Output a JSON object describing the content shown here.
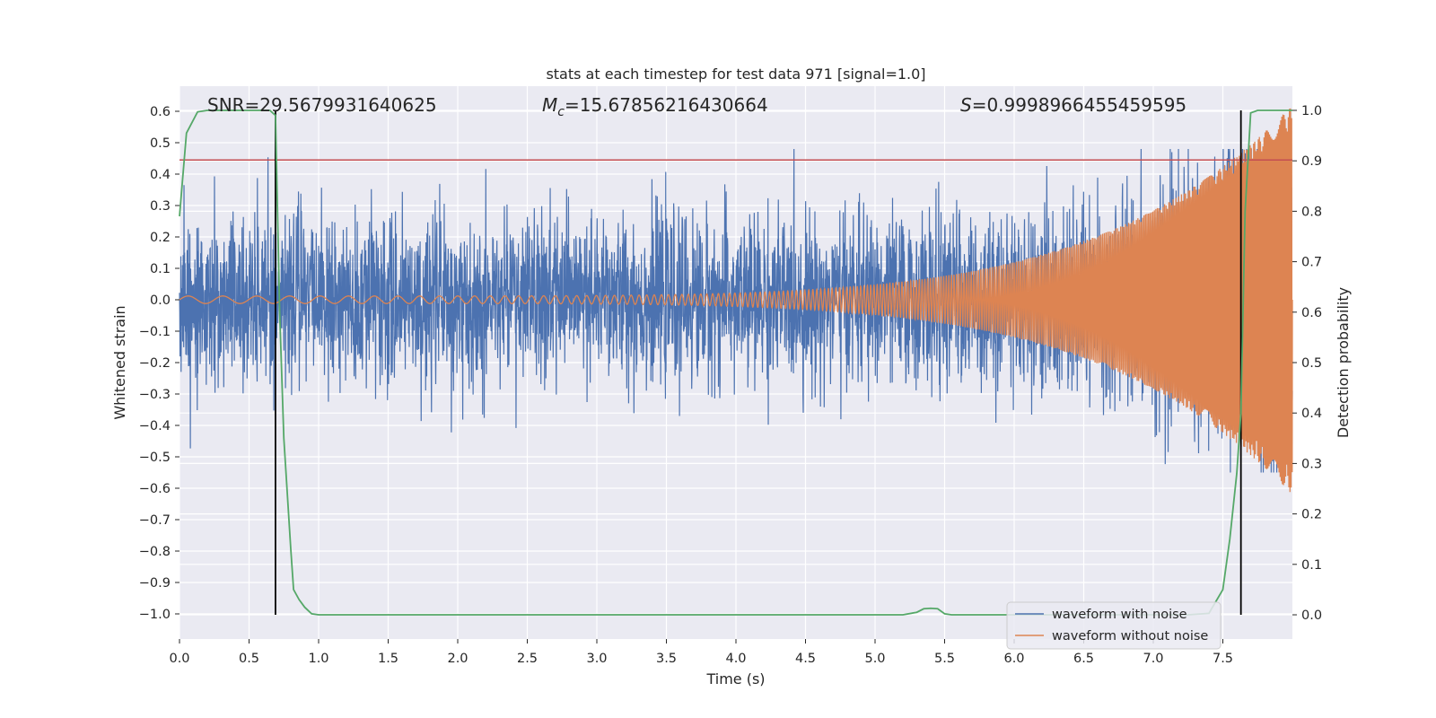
{
  "chart_data": {
    "type": "line",
    "title": "stats at each timestep for test data 971 [signal=1.0]",
    "xlabel": "Time (s)",
    "ylabel": "Whitened strain",
    "y2label": "Detection probability",
    "xlim": [
      0.0,
      8.0
    ],
    "ylim": [
      -1.08,
      0.68
    ],
    "y2lim": [
      -0.048,
      1.048
    ],
    "x_ticks": [
      "0.0",
      "0.5",
      "1.0",
      "1.5",
      "2.0",
      "2.5",
      "3.0",
      "3.5",
      "4.0",
      "4.5",
      "5.0",
      "5.5",
      "6.0",
      "6.5",
      "7.0",
      "7.5"
    ],
    "y_ticks": [
      "0.6",
      "0.5",
      "0.4",
      "0.3",
      "0.2",
      "0.1",
      "0.0",
      "−0.1",
      "−0.2",
      "−0.3",
      "−0.4",
      "−0.5",
      "−0.6",
      "−0.7",
      "−0.8",
      "−0.9",
      "−1.0"
    ],
    "y2_ticks": [
      "1.0",
      "0.9",
      "0.8",
      "0.7",
      "0.6",
      "0.5",
      "0.4",
      "0.3",
      "0.2",
      "0.1",
      "0.0"
    ],
    "grid": true,
    "legend_position": "lower-right",
    "annotations": {
      "snr": "SNR=29.5679931640625",
      "mc": "=15.67856216430664",
      "mc_symbol": "M",
      "mc_sub": "c",
      "s": "=0.9998966455459595",
      "s_symbol": "S"
    },
    "series": [
      {
        "name": "waveform with noise",
        "color": "#4c72b0",
        "description_amplitude": 0.13,
        "envelope_end": 0.45
      },
      {
        "name": "waveform without noise",
        "color": "#dd8452",
        "amp_start": 0.012,
        "amp_end": 0.62,
        "freq_start": 4.0,
        "freq_end": 40.0
      }
    ],
    "threshold_line": {
      "y": 0.445,
      "color": "#c44e52"
    },
    "vertical_lines": [
      {
        "x": 0.69,
        "color": "#000000"
      },
      {
        "x": 7.63,
        "color": "#000000"
      }
    ],
    "detection_probability": {
      "color": "#55a868",
      "x": [
        0.0,
        0.05,
        0.13,
        0.2,
        0.3,
        0.4,
        0.5,
        0.6,
        0.65,
        0.69,
        0.72,
        0.75,
        0.8,
        0.82,
        0.86,
        0.9,
        0.95,
        1.0,
        5.2,
        5.3,
        5.35,
        5.4,
        5.45,
        5.5,
        5.55,
        7.25,
        7.4,
        7.5,
        7.55,
        7.6,
        7.63,
        7.66,
        7.7,
        7.75,
        7.8,
        8.0
      ],
      "y": [
        0.79,
        0.955,
        0.997,
        1.0,
        1.0,
        1.0,
        1.0,
        1.0,
        1.0,
        0.99,
        0.6,
        0.35,
        0.13,
        0.05,
        0.03,
        0.015,
        0.002,
        0.0,
        0.0,
        0.005,
        0.012,
        0.013,
        0.012,
        0.002,
        0.0,
        0.0,
        0.003,
        0.05,
        0.15,
        0.28,
        0.4,
        0.8,
        0.995,
        1.0,
        1.0,
        1.0
      ]
    }
  }
}
